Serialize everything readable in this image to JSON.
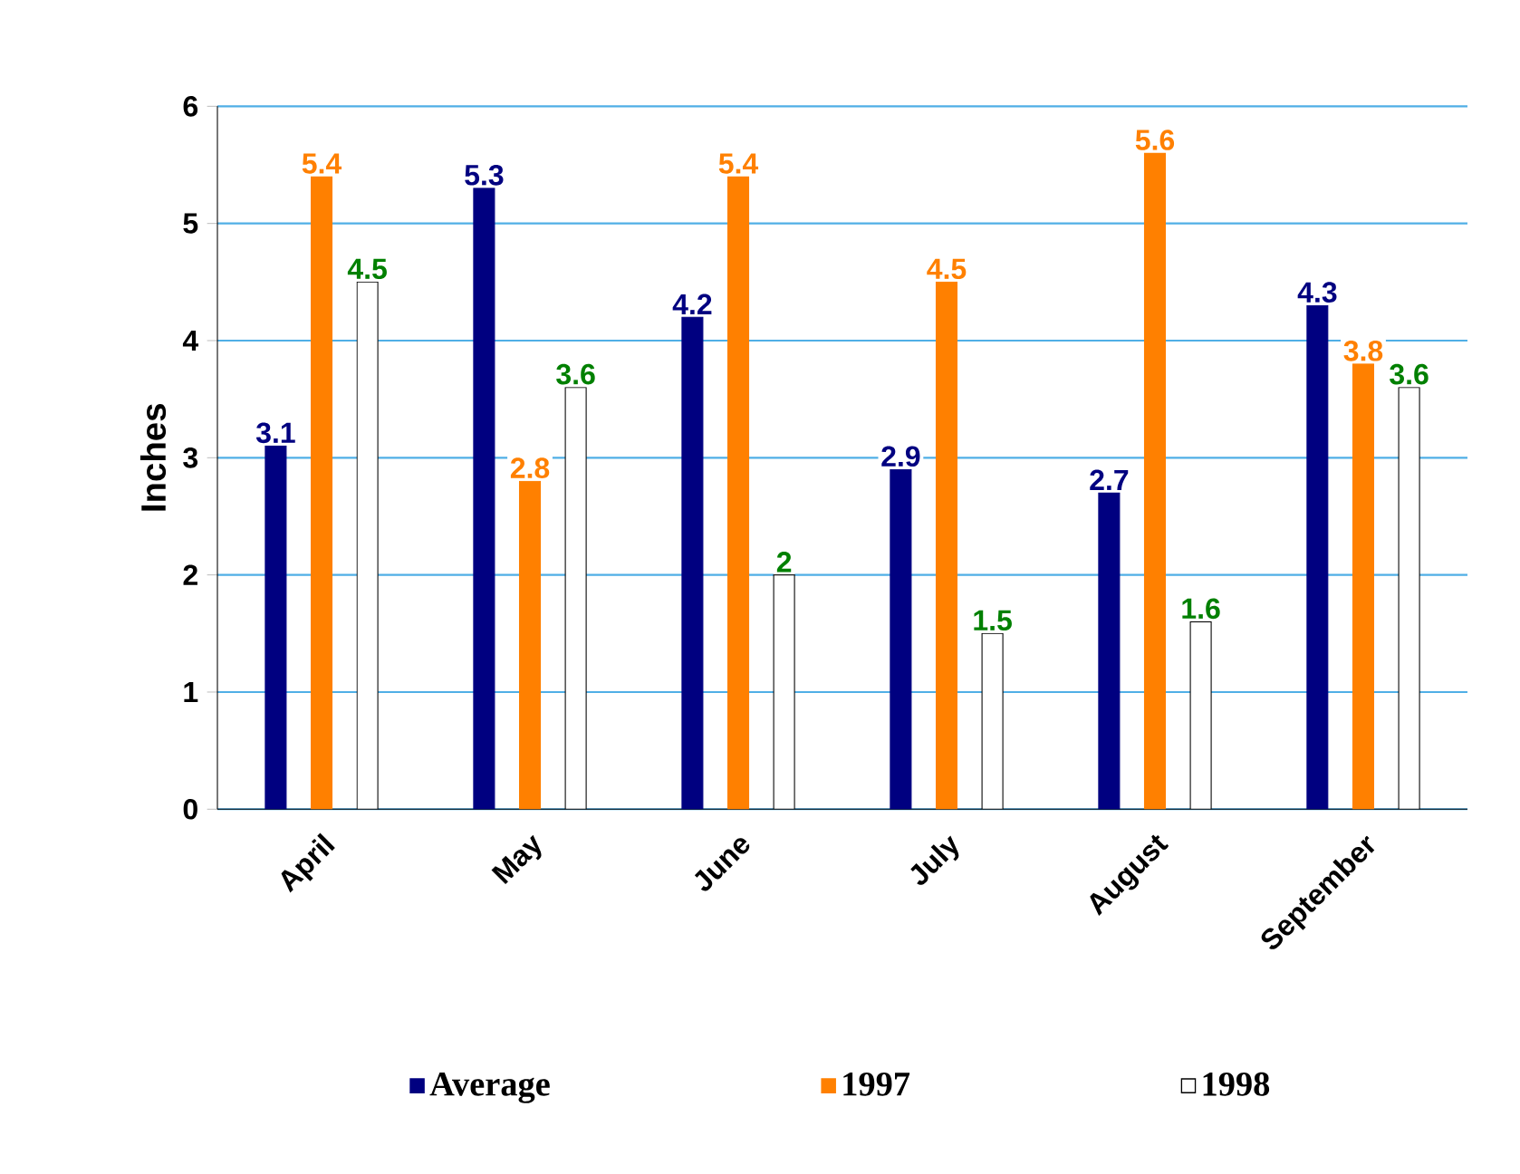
{
  "chart_data": {
    "type": "bar",
    "ylabel": "Inches",
    "categories": [
      "April",
      "May",
      "June",
      "July",
      "August",
      "September"
    ],
    "series": [
      {
        "name": "Average",
        "color": "#000080",
        "values": [
          3.1,
          5.3,
          4.2,
          2.9,
          2.7,
          4.3
        ]
      },
      {
        "name": "1997",
        "color": "#ff8000",
        "values": [
          5.4,
          2.8,
          5.4,
          4.5,
          5.6,
          3.8
        ]
      },
      {
        "name": "1998",
        "color": "#ffffff",
        "values": [
          4.5,
          3.6,
          2,
          1.5,
          1.6,
          3.6
        ]
      }
    ],
    "ylim": [
      0,
      6
    ],
    "yticks": [
      0,
      1,
      2,
      3,
      4,
      5,
      6
    ],
    "grid": "y",
    "legend": "bottom",
    "data_labels": true
  }
}
